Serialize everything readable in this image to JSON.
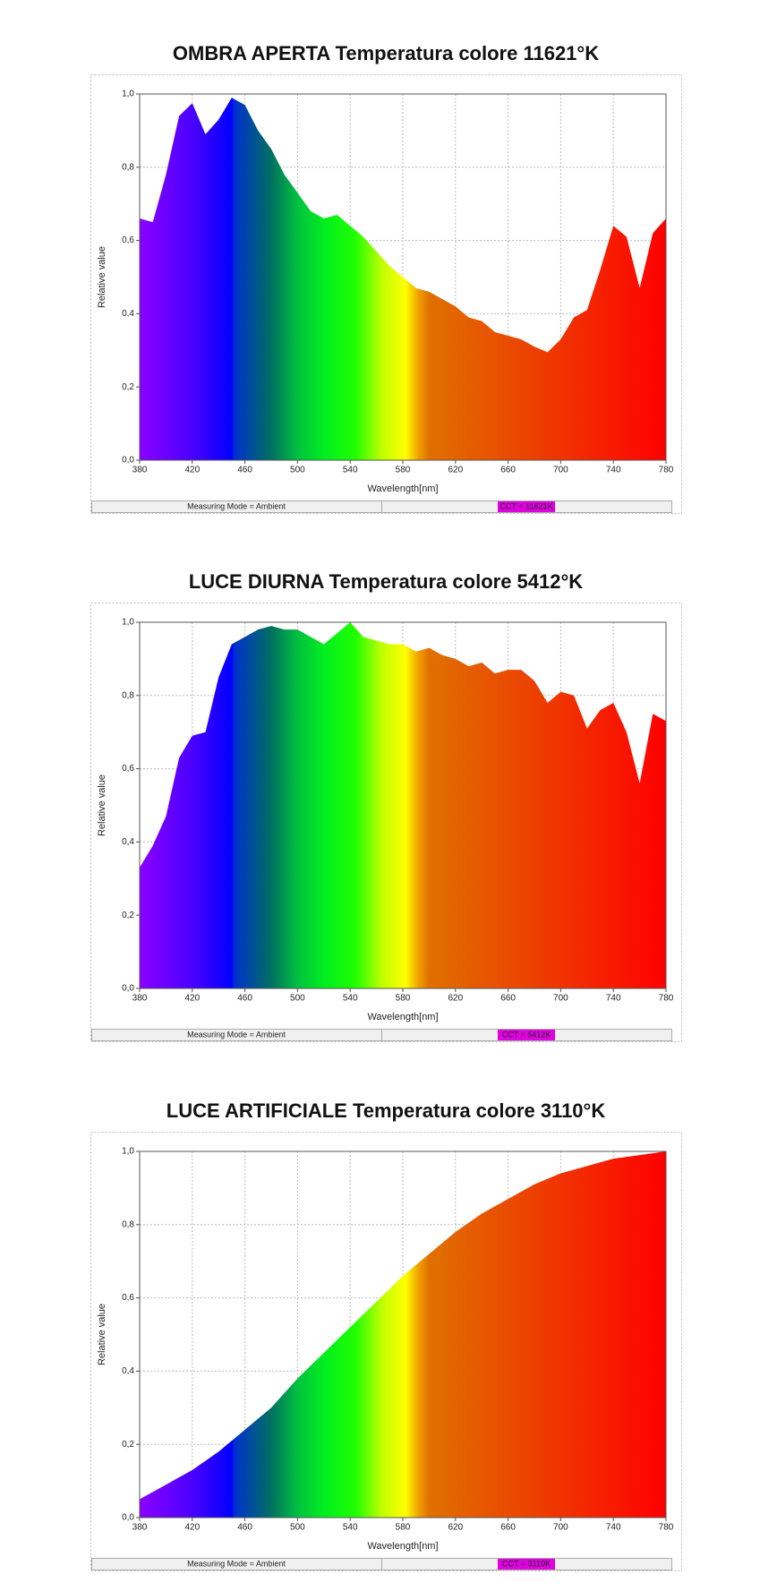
{
  "chart_data": [
    {
      "type": "area",
      "title": "OMBRA APERTA Temperatura colore 11621°K",
      "xlabel": "Wavelength[nm]",
      "ylabel": "Relative value",
      "x": [
        380,
        390,
        400,
        410,
        420,
        430,
        440,
        450,
        460,
        470,
        480,
        490,
        500,
        510,
        520,
        530,
        540,
        550,
        560,
        570,
        580,
        590,
        600,
        610,
        620,
        630,
        640,
        650,
        660,
        670,
        680,
        690,
        700,
        710,
        720,
        730,
        740,
        750,
        760,
        770,
        780
      ],
      "values": [
        0.66,
        0.65,
        0.78,
        0.94,
        0.975,
        0.89,
        0.93,
        0.99,
        0.97,
        0.9,
        0.85,
        0.78,
        0.73,
        0.68,
        0.66,
        0.67,
        0.64,
        0.61,
        0.57,
        0.53,
        0.5,
        0.47,
        0.46,
        0.44,
        0.42,
        0.39,
        0.38,
        0.35,
        0.34,
        0.33,
        0.31,
        0.295,
        0.33,
        0.39,
        0.41,
        0.52,
        0.64,
        0.61,
        0.47,
        0.62,
        0.66
      ],
      "xlim": [
        380,
        780
      ],
      "ylim": [
        0,
        1
      ],
      "xticks": [
        380,
        420,
        460,
        500,
        540,
        580,
        620,
        660,
        700,
        740,
        780
      ],
      "yticks": [
        {
          "value": 0,
          "label": "0,0"
        },
        {
          "value": 0.2,
          "label": "0,2"
        },
        {
          "value": 0.4,
          "label": "0,4"
        },
        {
          "value": 0.6,
          "label": "0,6"
        },
        {
          "value": 0.8,
          "label": "0,8"
        },
        {
          "value": 1,
          "label": "1,0"
        }
      ],
      "grid": true,
      "mode": "Measuring Mode = Ambient",
      "cct": "CCT = 11621K"
    },
    {
      "type": "area",
      "title": "LUCE DIURNA Temperatura colore 5412°K",
      "xlabel": "Wavelength[nm]",
      "ylabel": "Relative value",
      "x": [
        380,
        390,
        400,
        410,
        420,
        430,
        440,
        450,
        460,
        470,
        480,
        490,
        500,
        510,
        520,
        530,
        540,
        550,
        560,
        570,
        580,
        590,
        600,
        610,
        620,
        630,
        640,
        650,
        660,
        670,
        680,
        690,
        700,
        710,
        720,
        730,
        740,
        750,
        760,
        770,
        780
      ],
      "values": [
        0.33,
        0.39,
        0.47,
        0.63,
        0.69,
        0.7,
        0.85,
        0.94,
        0.96,
        0.98,
        0.99,
        0.98,
        0.98,
        0.96,
        0.94,
        0.97,
        1.0,
        0.96,
        0.95,
        0.94,
        0.94,
        0.92,
        0.93,
        0.91,
        0.9,
        0.88,
        0.89,
        0.86,
        0.87,
        0.87,
        0.84,
        0.78,
        0.81,
        0.8,
        0.71,
        0.76,
        0.78,
        0.7,
        0.56,
        0.75,
        0.73
      ],
      "xlim": [
        380,
        780
      ],
      "ylim": [
        0,
        1
      ],
      "xticks": [
        380,
        420,
        460,
        500,
        540,
        580,
        620,
        660,
        700,
        740,
        780
      ],
      "yticks": [
        {
          "value": 0,
          "label": "0,0"
        },
        {
          "value": 0.2,
          "label": "0,2"
        },
        {
          "value": 0.4,
          "label": "0,4"
        },
        {
          "value": 0.6,
          "label": "0,6"
        },
        {
          "value": 0.8,
          "label": "0,8"
        },
        {
          "value": 1,
          "label": "1,0"
        }
      ],
      "grid": true,
      "mode": "Measuring Mode = Ambient",
      "cct": "CCT = 5412K"
    },
    {
      "type": "area",
      "title": "LUCE ARTIFICIALE Temperatura colore 3110°K",
      "xlabel": "Wavelength[nm]",
      "ylabel": "Relative value",
      "x": [
        380,
        400,
        420,
        440,
        460,
        480,
        500,
        520,
        540,
        560,
        580,
        600,
        620,
        640,
        660,
        680,
        700,
        720,
        740,
        760,
        780
      ],
      "values": [
        0.05,
        0.09,
        0.13,
        0.18,
        0.24,
        0.3,
        0.38,
        0.45,
        0.52,
        0.59,
        0.66,
        0.72,
        0.78,
        0.83,
        0.87,
        0.91,
        0.94,
        0.96,
        0.98,
        0.99,
        1.0
      ],
      "xlim": [
        380,
        780
      ],
      "ylim": [
        0,
        1
      ],
      "xticks": [
        380,
        420,
        460,
        500,
        540,
        580,
        620,
        660,
        700,
        740,
        780
      ],
      "yticks": [
        {
          "value": 0,
          "label": "0,0"
        },
        {
          "value": 0.2,
          "label": "0,2"
        },
        {
          "value": 0.4,
          "label": "0,4"
        },
        {
          "value": 0.6,
          "label": "0,6"
        },
        {
          "value": 0.8,
          "label": "0,8"
        },
        {
          "value": 1,
          "label": "1,0"
        }
      ],
      "grid": true,
      "mode": "Measuring Mode = Ambient",
      "cct": "CCT = 3110K"
    }
  ]
}
